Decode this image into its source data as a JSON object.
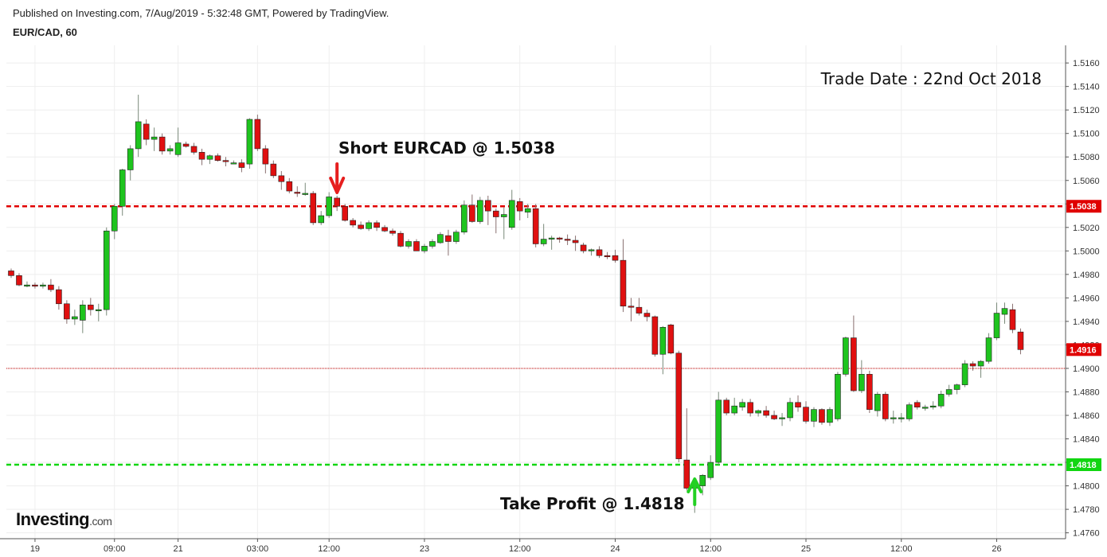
{
  "header": {
    "published": "Published on Investing.com, 7/Aug/2019 - 5:32:48 GMT, Powered by TradingView.",
    "symbol": "EUR/CAD, 60"
  },
  "logo": {
    "text": "Investing",
    "suffix": ".com"
  },
  "chart_data": {
    "type": "candlestick",
    "ylim": [
      1.4755,
      1.5175
    ],
    "y_ticks": [
      "1.4760",
      "1.4780",
      "1.4800",
      "1.4820",
      "1.4840",
      "1.4860",
      "1.4880",
      "1.4900",
      "1.4920",
      "1.4940",
      "1.4960",
      "1.4980",
      "1.5000",
      "1.5020",
      "1.5040",
      "1.5060",
      "1.5080",
      "1.5100",
      "1.5120",
      "1.5140",
      "1.5160"
    ],
    "x_tick_labels": [
      {
        "label": "19",
        "bar": 3
      },
      {
        "label": "09:00",
        "bar": 13
      },
      {
        "label": "21",
        "bar": 21
      },
      {
        "label": "03:00",
        "bar": 31
      },
      {
        "label": "12:00",
        "bar": 40
      },
      {
        "label": "23",
        "bar": 52
      },
      {
        "label": "12:00",
        "bar": 64
      },
      {
        "label": "24",
        "bar": 76
      },
      {
        "label": "12:00",
        "bar": 88
      },
      {
        "label": "25",
        "bar": 100
      },
      {
        "label": "12:00",
        "bar": 112
      },
      {
        "label": "26",
        "bar": 124
      }
    ],
    "candles": [
      [
        1.4983,
        1.4985,
        1.4977,
        1.4979
      ],
      [
        1.4979,
        1.4981,
        1.497,
        1.4971
      ],
      [
        1.4971,
        1.4974,
        1.4969,
        1.4971
      ],
      [
        1.4971,
        1.4973,
        1.4968,
        1.497
      ],
      [
        1.497,
        1.4973,
        1.4968,
        1.4971
      ],
      [
        1.4971,
        1.4976,
        1.4965,
        1.4967
      ],
      [
        1.4967,
        1.497,
        1.495,
        1.4955
      ],
      [
        1.4955,
        1.4958,
        1.4938,
        1.4942
      ],
      [
        1.4942,
        1.495,
        1.4937,
        1.4944
      ],
      [
        1.4941,
        1.4958,
        1.493,
        1.4954
      ],
      [
        1.4954,
        1.496,
        1.4945,
        1.495
      ],
      [
        1.495,
        1.4955,
        1.494,
        1.495
      ],
      [
        1.495,
        1.502,
        1.4945,
        1.5017
      ],
      [
        1.5017,
        1.504,
        1.501,
        1.5038
      ],
      [
        1.5038,
        1.507,
        1.503,
        1.5069
      ],
      [
        1.5069,
        1.509,
        1.506,
        1.5087
      ],
      [
        1.5087,
        1.5133,
        1.508,
        1.511
      ],
      [
        1.5108,
        1.5112,
        1.509,
        1.5095
      ],
      [
        1.5095,
        1.5105,
        1.5085,
        1.5097
      ],
      [
        1.5097,
        1.51,
        1.5082,
        1.5085
      ],
      [
        1.5085,
        1.509,
        1.5082,
        1.5087
      ],
      [
        1.5082,
        1.5105,
        1.508,
        1.5092
      ],
      [
        1.5091,
        1.5093,
        1.5088,
        1.5089
      ],
      [
        1.5089,
        1.5092,
        1.5082,
        1.5084
      ],
      [
        1.5084,
        1.5087,
        1.5073,
        1.5078
      ],
      [
        1.5078,
        1.5082,
        1.5074,
        1.5081
      ],
      [
        1.5081,
        1.5083,
        1.5076,
        1.5077
      ],
      [
        1.5077,
        1.508,
        1.5072,
        1.5076
      ],
      [
        1.5075,
        1.5077,
        1.5074,
        1.5075
      ],
      [
        1.5075,
        1.5078,
        1.5067,
        1.5071
      ],
      [
        1.5074,
        1.5113,
        1.507,
        1.5112
      ],
      [
        1.5112,
        1.5116,
        1.5085,
        1.5087
      ],
      [
        1.5087,
        1.509,
        1.5066,
        1.5074
      ],
      [
        1.5074,
        1.5077,
        1.5062,
        1.5064
      ],
      [
        1.5064,
        1.5068,
        1.5052,
        1.5059
      ],
      [
        1.5059,
        1.5062,
        1.5049,
        1.5051
      ],
      [
        1.505,
        1.5055,
        1.5046,
        1.5049
      ],
      [
        1.5049,
        1.5058,
        1.5047,
        1.5049
      ],
      [
        1.5049,
        1.5051,
        1.5022,
        1.5024
      ],
      [
        1.5024,
        1.5034,
        1.5022,
        1.503
      ],
      [
        1.503,
        1.505,
        1.5028,
        1.5046
      ],
      [
        1.5045,
        1.5047,
        1.5034,
        1.5038
      ],
      [
        1.5038,
        1.504,
        1.5025,
        1.5026
      ],
      [
        1.5026,
        1.5028,
        1.502,
        1.5022
      ],
      [
        1.5022,
        1.5025,
        1.5018,
        1.5019
      ],
      [
        1.5019,
        1.5026,
        1.5017,
        1.5024
      ],
      [
        1.5024,
        1.5026,
        1.5017,
        1.502
      ],
      [
        1.502,
        1.5022,
        1.5016,
        1.5017
      ],
      [
        1.5017,
        1.5019,
        1.5013,
        1.5015
      ],
      [
        1.5015,
        1.5017,
        1.5003,
        1.5004
      ],
      [
        1.5004,
        1.501,
        1.5002,
        1.5008
      ],
      [
        1.5008,
        1.501,
        1.5,
        1.5
      ],
      [
        1.5,
        1.5006,
        1.4998,
        1.5004
      ],
      [
        1.5004,
        1.501,
        1.5002,
        1.5008
      ],
      [
        1.5007,
        1.5016,
        1.5006,
        1.5014
      ],
      [
        1.5013,
        1.5018,
        1.4996,
        1.5008
      ],
      [
        1.5008,
        1.5018,
        1.5006,
        1.5016
      ],
      [
        1.5016,
        1.5043,
        1.5014,
        1.5039
      ],
      [
        1.5039,
        1.5048,
        1.5024,
        1.5025
      ],
      [
        1.5025,
        1.5046,
        1.5023,
        1.5043
      ],
      [
        1.5043,
        1.5047,
        1.5022,
        1.5034
      ],
      [
        1.5034,
        1.5036,
        1.5015,
        1.5029
      ],
      [
        1.5029,
        1.5037,
        1.501,
        1.5031
      ],
      [
        1.502,
        1.5052,
        1.5018,
        1.5043
      ],
      [
        1.5042,
        1.5045,
        1.5026,
        1.5034
      ],
      [
        1.5033,
        1.504,
        1.5028,
        1.5036
      ],
      [
        1.5036,
        1.504,
        1.5003,
        1.5006
      ],
      [
        1.5006,
        1.5023,
        1.5004,
        1.501
      ],
      [
        1.501,
        1.5013,
        1.5001,
        1.5011
      ],
      [
        1.5011,
        1.5012,
        1.5007,
        1.501
      ],
      [
        1.501,
        1.5014,
        1.5005,
        1.5009
      ],
      [
        1.5009,
        1.5013,
        1.5,
        1.5007
      ],
      [
        1.5005,
        1.5007,
        1.4998,
        1.5
      ],
      [
        1.5,
        1.5002,
        1.4996,
        1.5001
      ],
      [
        1.5001,
        1.5004,
        1.4994,
        1.4996
      ],
      [
        1.4996,
        1.4999,
        1.4993,
        1.4995
      ],
      [
        1.4996,
        1.5001,
        1.499,
        1.4992
      ],
      [
        1.4992,
        1.501,
        1.4948,
        1.4953
      ],
      [
        1.4953,
        1.496,
        1.494,
        1.4952
      ],
      [
        1.4952,
        1.496,
        1.4945,
        1.4947
      ],
      [
        1.4947,
        1.495,
        1.494,
        1.4944
      ],
      [
        1.4944,
        1.4945,
        1.491,
        1.4912
      ],
      [
        1.4912,
        1.4936,
        1.4895,
        1.4935
      ],
      [
        1.4937,
        1.4938,
        1.4912,
        1.4913
      ],
      [
        1.4913,
        1.4915,
        1.482,
        1.4823
      ],
      [
        1.4822,
        1.4866,
        1.4796,
        1.4798
      ],
      [
        1.4798,
        1.4802,
        1.4777,
        1.48
      ],
      [
        1.48,
        1.481,
        1.4792,
        1.4809
      ],
      [
        1.4807,
        1.4826,
        1.4805,
        1.482
      ],
      [
        1.482,
        1.488,
        1.4818,
        1.4873
      ],
      [
        1.4873,
        1.4875,
        1.486,
        1.4862
      ],
      [
        1.4862,
        1.4875,
        1.486,
        1.4868
      ],
      [
        1.4867,
        1.4874,
        1.4864,
        1.4871
      ],
      [
        1.4871,
        1.4874,
        1.4859,
        1.4862
      ],
      [
        1.4862,
        1.4865,
        1.4859,
        1.4864
      ],
      [
        1.4864,
        1.4868,
        1.4858,
        1.486
      ],
      [
        1.486,
        1.4864,
        1.4856,
        1.4857
      ],
      [
        1.4857,
        1.4862,
        1.4851,
        1.4858
      ],
      [
        1.4858,
        1.4875,
        1.4855,
        1.4871
      ],
      [
        1.4871,
        1.4877,
        1.4863,
        1.4867
      ],
      [
        1.4867,
        1.4872,
        1.4853,
        1.4855
      ],
      [
        1.4855,
        1.4867,
        1.485,
        1.4865
      ],
      [
        1.4865,
        1.4866,
        1.4852,
        1.4854
      ],
      [
        1.4854,
        1.4867,
        1.4851,
        1.4865
      ],
      [
        1.4857,
        1.4897,
        1.4855,
        1.4895
      ],
      [
        1.4895,
        1.4927,
        1.4893,
        1.4926
      ],
      [
        1.4926,
        1.4945,
        1.488,
        1.4881
      ],
      [
        1.4881,
        1.4907,
        1.4879,
        1.4895
      ],
      [
        1.4895,
        1.4898,
        1.4862,
        1.4865
      ],
      [
        1.4864,
        1.488,
        1.4859,
        1.4878
      ],
      [
        1.4878,
        1.488,
        1.4855,
        1.4857
      ],
      [
        1.4857,
        1.4864,
        1.4853,
        1.4858
      ],
      [
        1.4858,
        1.4862,
        1.4854,
        1.4858
      ],
      [
        1.4857,
        1.4871,
        1.4855,
        1.4869
      ],
      [
        1.4871,
        1.4873,
        1.4865,
        1.4867
      ],
      [
        1.4867,
        1.4869,
        1.4864,
        1.4867
      ],
      [
        1.4867,
        1.4872,
        1.4865,
        1.4868
      ],
      [
        1.4868,
        1.4881,
        1.4866,
        1.4878
      ],
      [
        1.4878,
        1.4886,
        1.4876,
        1.4882
      ],
      [
        1.4882,
        1.4887,
        1.4878,
        1.4886
      ],
      [
        1.4886,
        1.4907,
        1.4884,
        1.4904
      ],
      [
        1.4904,
        1.4906,
        1.4898,
        1.4902
      ],
      [
        1.4902,
        1.4907,
        1.4892,
        1.4906
      ],
      [
        1.4906,
        1.493,
        1.4904,
        1.4926
      ],
      [
        1.4926,
        1.4956,
        1.4924,
        1.4947
      ],
      [
        1.4946,
        1.4956,
        1.4938,
        1.4951
      ],
      [
        1.495,
        1.4955,
        1.493,
        1.4933
      ],
      [
        1.4931,
        1.4934,
        1.4912,
        1.4916
      ]
    ],
    "hlines": [
      {
        "value": 1.5038,
        "color": "#e00000",
        "style": "dashed",
        "label": "1.5038"
      },
      {
        "value": 1.4818,
        "color": "#11d611",
        "style": "dashed",
        "label": "1.4818"
      },
      {
        "value": 1.49,
        "color": "#c40000",
        "style": "dotted",
        "label": ""
      }
    ],
    "last_price": {
      "value": 1.4916,
      "label": "1.4916",
      "color": "#e00000"
    },
    "annotations": {
      "trade_date": "Trade Date : 22nd Oct 2018",
      "short": "Short EURCAD @ 1.5038",
      "take_profit": "Take Profit @ 1.4818"
    },
    "arrows": [
      {
        "direction": "down",
        "bar": 41,
        "color": "#e61e1e"
      },
      {
        "direction": "up",
        "bar": 86,
        "color": "#22d022"
      }
    ],
    "colors": {
      "up": "#1ec41e",
      "down": "#e01010",
      "grid": "#eeeeee"
    }
  }
}
